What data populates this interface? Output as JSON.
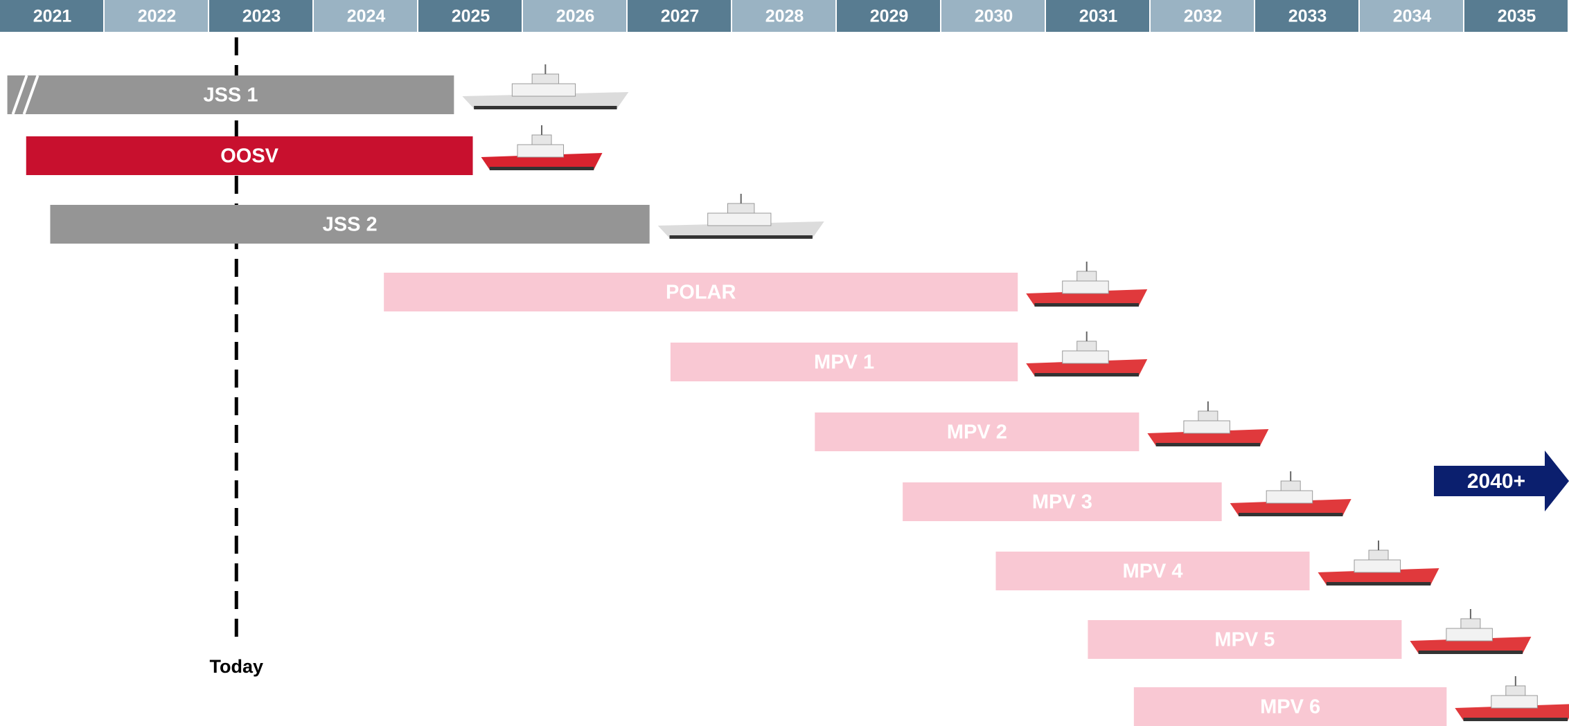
{
  "chart_data": {
    "type": "gantt",
    "xlim": [
      2021,
      2036
    ],
    "xticks": [
      2021,
      2022,
      2023,
      2024,
      2025,
      2026,
      2027,
      2028,
      2029,
      2030,
      2031,
      2032,
      2033,
      2034,
      2035
    ],
    "header_colors": [
      "#587c91",
      "#9ab3c3"
    ],
    "today": {
      "value": 2023.26,
      "label": "Today"
    },
    "tasks": [
      {
        "name": "JSS 1",
        "start": 2021.07,
        "end": 2025.34,
        "color": "#959595",
        "ship_color": "#dcdcdc",
        "hatched_start": true
      },
      {
        "name": "OOSV",
        "start": 2021.25,
        "end": 2025.52,
        "color": "#c8102e",
        "ship_color": "#d8232f"
      },
      {
        "name": "JSS 2",
        "start": 2021.48,
        "end": 2027.21,
        "color": "#959595",
        "ship_color": "#dcdcdc"
      },
      {
        "name": "POLAR",
        "start": 2024.67,
        "end": 2030.73,
        "color": "#f9c8d3",
        "ship_color": "#e0393c"
      },
      {
        "name": "MPV 1",
        "start": 2027.41,
        "end": 2030.73,
        "color": "#f9c8d3",
        "ship_color": "#e0393c"
      },
      {
        "name": "MPV 2",
        "start": 2028.79,
        "end": 2031.89,
        "color": "#f9c8d3",
        "ship_color": "#e0393c"
      },
      {
        "name": "MPV 3",
        "start": 2029.63,
        "end": 2032.68,
        "color": "#f9c8d3",
        "ship_color": "#e0393c"
      },
      {
        "name": "MPV 4",
        "start": 2030.52,
        "end": 2033.52,
        "color": "#f9c8d3",
        "ship_color": "#e0393c"
      },
      {
        "name": "MPV 5",
        "start": 2031.4,
        "end": 2034.4,
        "color": "#f9c8d3",
        "ship_color": "#e0393c"
      },
      {
        "name": "MPV 6",
        "start": 2031.84,
        "end": 2034.83,
        "color": "#f9c8d3",
        "ship_color": "#e0393c"
      }
    ],
    "arrow": {
      "label": "2040+",
      "color": "#0b1f6e"
    }
  }
}
